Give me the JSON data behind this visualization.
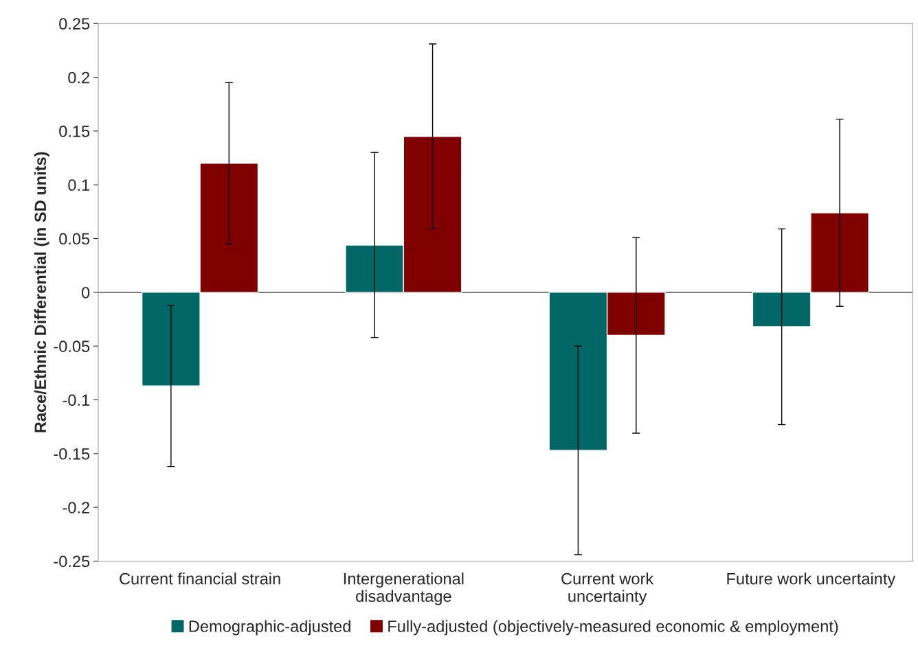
{
  "chart_data": {
    "type": "bar",
    "ylabel": "Race/Ethnic Differential (in SD units)",
    "categories": [
      "Current financial strain",
      "Intergenerational\ndisadvantage",
      "Current work\nuncertainty",
      "Future work uncertainty"
    ],
    "series": [
      {
        "name": "Demographic-adjusted",
        "color": "#006666",
        "values": [
          -0.087,
          0.044,
          -0.147,
          -0.032
        ],
        "errors": [
          0.075,
          0.086,
          0.097,
          0.091
        ]
      },
      {
        "name": "Fully-adjusted (objectively-measured economic & employment)",
        "color": "#800000",
        "values": [
          0.12,
          0.145,
          -0.04,
          0.074
        ],
        "errors": [
          0.075,
          0.086,
          0.091,
          0.087
        ]
      }
    ],
    "ylim": [
      -0.25,
      0.25
    ],
    "yticks": [
      -0.25,
      -0.2,
      -0.15,
      -0.1,
      -0.05,
      0,
      0.05,
      0.1,
      0.15,
      0.2,
      0.25
    ],
    "legend": "bottom"
  }
}
